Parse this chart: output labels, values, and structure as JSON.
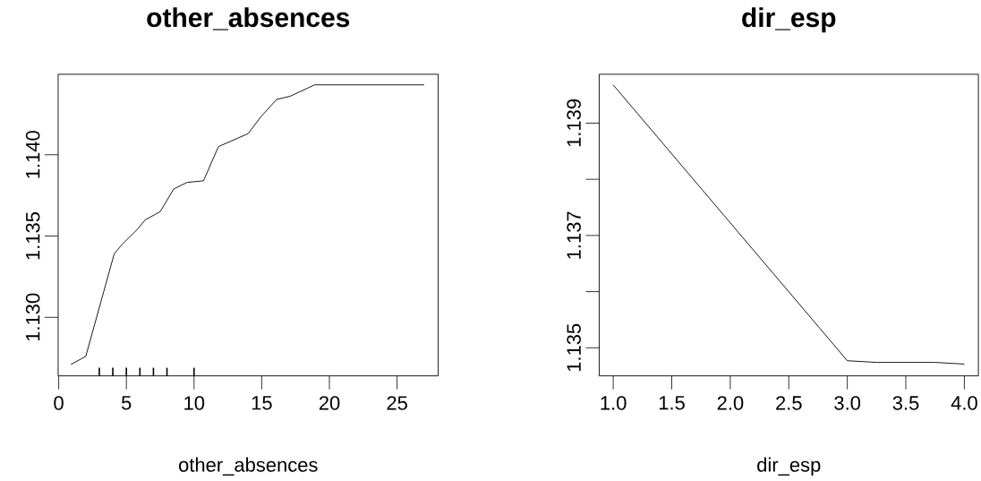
{
  "chart_data": [
    {
      "type": "line",
      "title": "other_absences",
      "xlabel": "other_absences",
      "xlim": [
        -0.04,
        28.04
      ],
      "ylim": [
        1.1264,
        1.14495
      ],
      "xticks": [
        0,
        5,
        10,
        15,
        20,
        25
      ],
      "yticks": [
        {
          "value": 1.13,
          "label": "1.130"
        },
        {
          "value": 1.135,
          "label": "1.135"
        },
        {
          "value": 1.14,
          "label": "1.140"
        }
      ],
      "grid": false,
      "series": [
        {
          "color": "#000000",
          "x": [
            0.9,
            2.0,
            4.1,
            4.7,
            5.8,
            6.4,
            7.5,
            8.5,
            9.5,
            10.7,
            11.8,
            14.0,
            14.9,
            16.1,
            17.1,
            18.4,
            18.9,
            27.0
          ],
          "values": [
            1.1271,
            1.1276,
            1.1339,
            1.1345,
            1.1354,
            1.136,
            1.1365,
            1.1379,
            1.1383,
            1.1384,
            1.1405,
            1.1413,
            1.1423,
            1.1434,
            1.1436,
            1.1441,
            1.1443,
            1.1443
          ]
        },
        {
          "type": "bar",
          "color": "#000000",
          "x": [
            3,
            4,
            5,
            6,
            7,
            8,
            10
          ],
          "base": [
            1.1264,
            1.1264,
            1.1264,
            1.1264,
            1.1264,
            1.1264,
            1.1264
          ],
          "values": [
            0.0005,
            0.0005,
            0.0005,
            0.0005,
            0.0005,
            0.0005,
            0.0005
          ]
        }
      ]
    },
    {
      "type": "line",
      "title": "dir_esp",
      "xlabel": "dir_esp",
      "xlim": [
        0.88,
        4.12
      ],
      "ylim": [
        1.1345,
        1.13987
      ],
      "xticks": [
        {
          "value": 1,
          "label": "1.0"
        },
        {
          "value": 1.5,
          "label": "1.5"
        },
        {
          "value": 2,
          "label": "2.0"
        },
        {
          "value": 2.5,
          "label": "2.5"
        },
        {
          "value": 3,
          "label": "3.0"
        },
        {
          "value": 3.5,
          "label": "3.5"
        },
        {
          "value": 4,
          "label": "4.0"
        }
      ],
      "yticks": [
        {
          "value": 1.135,
          "label": "1.135"
        },
        {
          "value": 1.136,
          "label": null
        },
        {
          "value": 1.137,
          "label": "1.137"
        },
        {
          "value": 1.138,
          "label": null
        },
        {
          "value": 1.139,
          "label": "1.139"
        }
      ],
      "grid": false,
      "series": [
        {
          "color": "#000000",
          "x": [
            1,
            3,
            3.25,
            3.75,
            4
          ],
          "values": [
            1.13968,
            1.13477,
            1.13474,
            1.13474,
            1.13471
          ]
        }
      ]
    }
  ]
}
